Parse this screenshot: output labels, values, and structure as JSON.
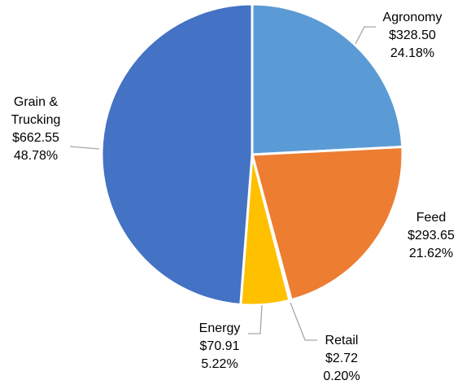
{
  "chart_data": {
    "type": "pie",
    "categories": [
      "Agronomy",
      "Feed",
      "Retail",
      "Energy",
      "Grain & Trucking"
    ],
    "values": [
      328.5,
      293.65,
      2.72,
      70.91,
      662.55
    ],
    "value_labels": [
      "$328.50",
      "$293.65",
      "$2.72",
      "$70.91",
      "$662.55"
    ],
    "percents": [
      24.18,
      21.62,
      0.2,
      5.22,
      48.78
    ],
    "percent_labels": [
      "24.18%",
      "21.62%",
      "0.20%",
      "5.22%",
      "48.78%"
    ],
    "colors": [
      "#5b9bd5",
      "#ed7d31",
      "#a5a5a5",
      "#ffc000",
      "#4472c4"
    ]
  }
}
